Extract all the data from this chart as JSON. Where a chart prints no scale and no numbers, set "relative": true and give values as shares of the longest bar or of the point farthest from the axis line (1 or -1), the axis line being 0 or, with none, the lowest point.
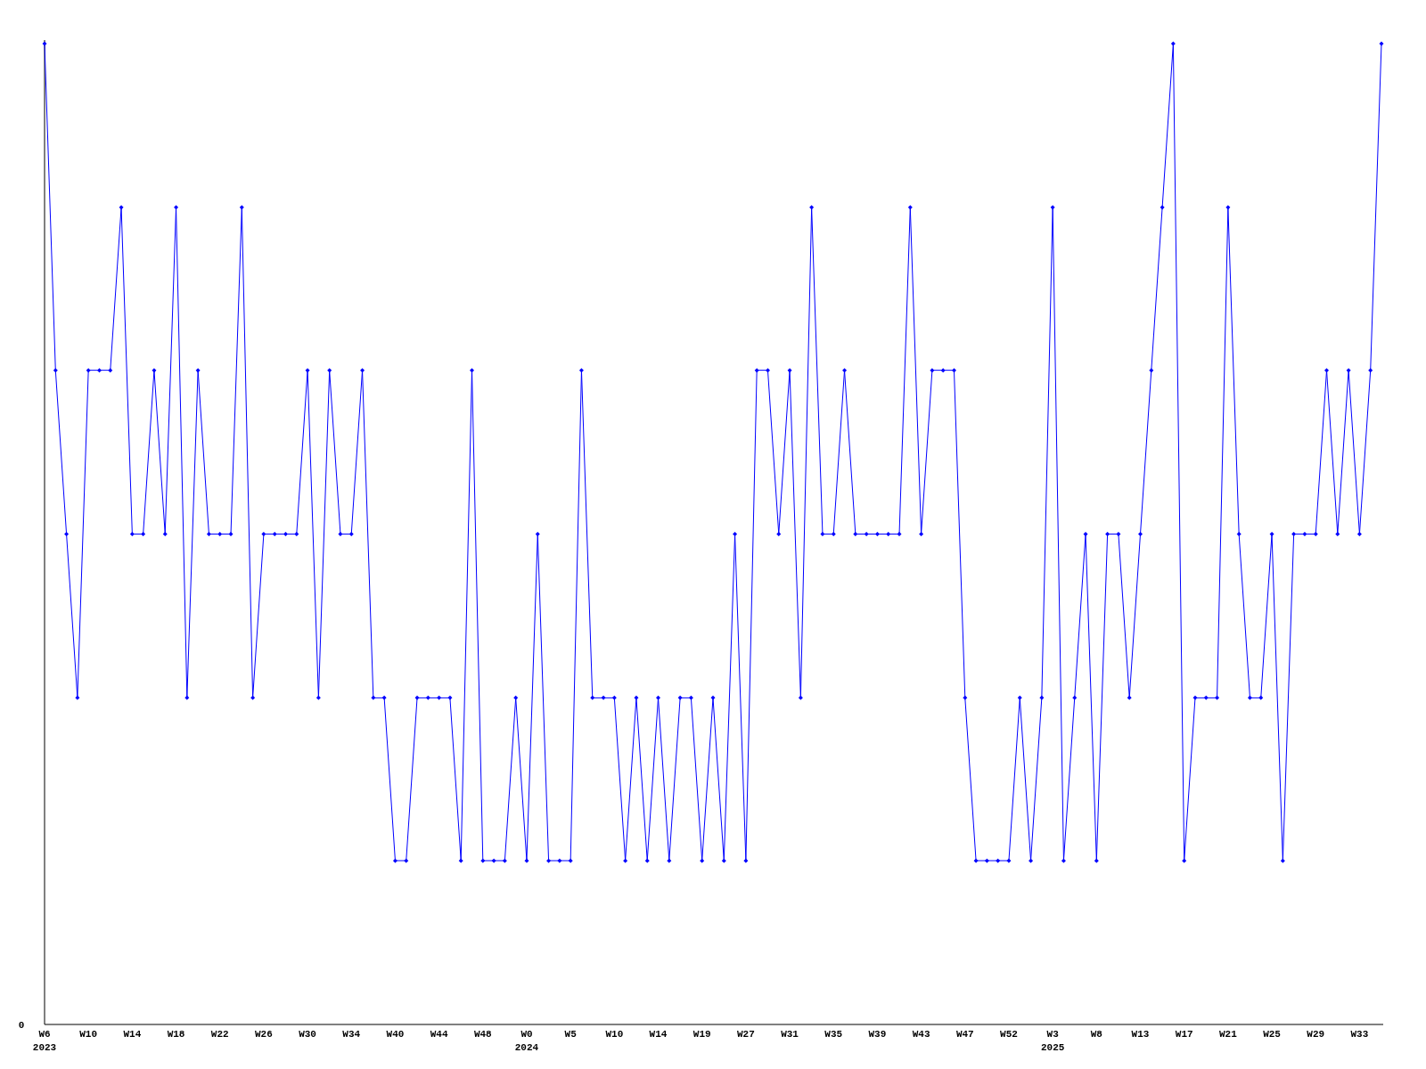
{
  "chart_data": {
    "type": "line",
    "relative": true,
    "annotations": [
      "0"
    ],
    "marker": "diamond",
    "line_style": "solid",
    "categories": [
      "W6\n2023",
      null,
      null,
      null,
      "W10",
      null,
      null,
      null,
      "W14",
      null,
      null,
      null,
      "W18",
      null,
      null,
      null,
      "W22",
      null,
      null,
      null,
      "W26",
      null,
      null,
      null,
      "W30",
      null,
      null,
      null,
      "W34",
      null,
      null,
      null,
      "W40",
      null,
      null,
      null,
      "W44",
      null,
      null,
      null,
      "W48",
      null,
      null,
      null,
      "W0\n2024",
      null,
      null,
      null,
      "W5",
      null,
      null,
      null,
      "W10",
      null,
      null,
      null,
      "W14",
      null,
      null,
      null,
      "W19",
      null,
      null,
      null,
      "W27",
      null,
      null,
      null,
      "W31",
      null,
      null,
      null,
      "W35",
      null,
      null,
      null,
      "W39",
      null,
      null,
      null,
      "W43",
      null,
      null,
      null,
      "W47",
      null,
      null,
      null,
      "W52",
      null,
      null,
      null,
      "W3\n2025",
      null,
      null,
      null,
      "W8",
      null,
      null,
      null,
      "W13",
      null,
      null,
      null,
      "W17",
      null,
      null,
      null,
      "W21",
      null,
      null,
      null,
      "W25",
      null,
      null,
      null,
      "W29",
      null,
      null,
      null,
      "W33",
      null,
      null
    ],
    "series": [
      {
        "color": "#0000ff",
        "values": [
          1,
          0.667,
          0.5,
          0.333,
          0.667,
          0.667,
          0.667,
          0.833,
          0.5,
          0.5,
          0.667,
          0.5,
          0.833,
          0.333,
          0.667,
          0.5,
          0.5,
          0.5,
          0.833,
          0.333,
          0.5,
          0.5,
          0.5,
          0.5,
          0.667,
          0.333,
          0.667,
          0.5,
          0.5,
          0.667,
          0.333,
          0.333,
          0.167,
          0.167,
          0.333,
          0.333,
          0.333,
          0.333,
          0.167,
          0.667,
          0.167,
          0.167,
          0.167,
          0.333,
          0.167,
          0.5,
          0.167,
          0.167,
          0.167,
          0.667,
          0.333,
          0.333,
          0.333,
          0.167,
          0.333,
          0.167,
          0.333,
          0.167,
          0.333,
          0.333,
          0.167,
          0.333,
          0.167,
          0.5,
          0.167,
          0.667,
          0.667,
          0.5,
          0.667,
          0.333,
          0.833,
          0.5,
          0.5,
          0.667,
          0.5,
          0.5,
          0.5,
          0.5,
          0.5,
          0.833,
          0.5,
          0.667,
          0.667,
          0.667,
          0.333,
          0.167,
          0.167,
          0.167,
          0.167,
          0.333,
          0.167,
          0.333,
          0.833,
          0.167,
          0.333,
          0.5,
          0.167,
          0.5,
          0.5,
          0.333,
          0.5,
          0.667,
          0.833,
          1,
          0.167,
          0.333,
          0.333,
          0.333,
          0.833,
          0.5,
          0.333,
          0.333,
          0.5,
          0.167,
          0.5,
          0.5,
          0.5,
          0.667,
          0.5,
          0.667,
          0.5,
          0.667,
          1
        ]
      }
    ]
  }
}
